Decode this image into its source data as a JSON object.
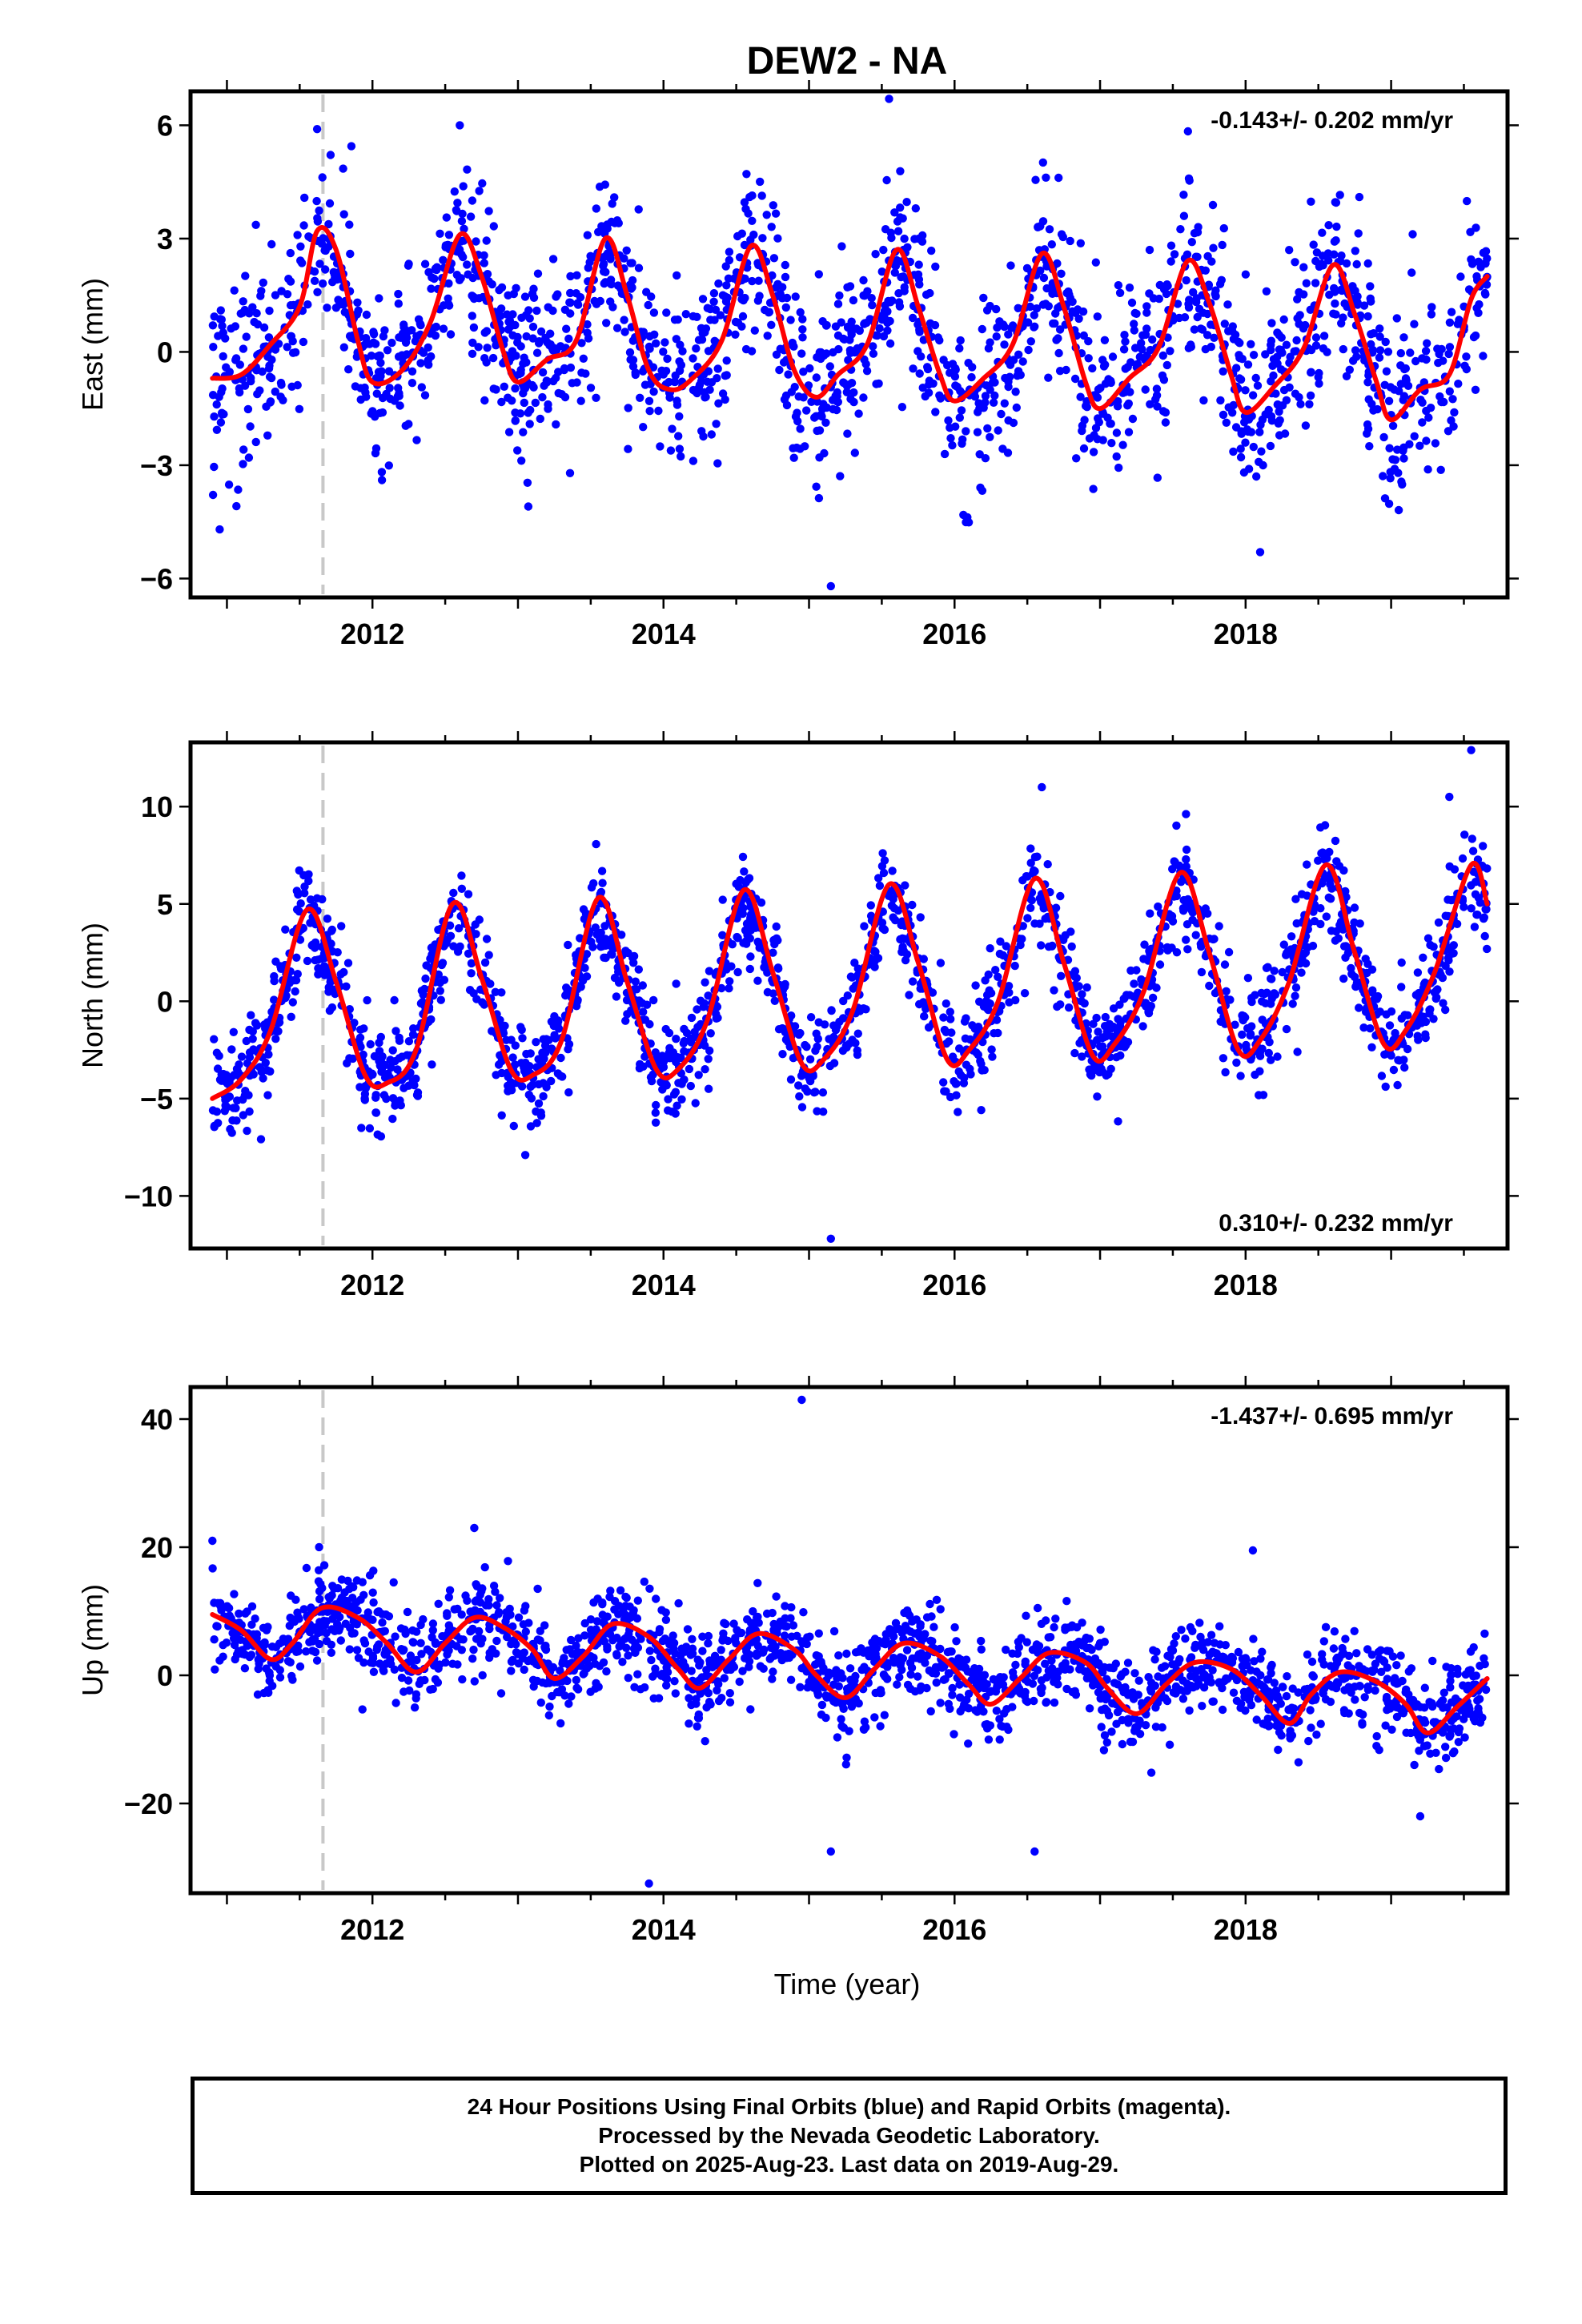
{
  "title": "DEW2 - NA",
  "xlabel": "Time (year)",
  "footer": {
    "line1": "24 Hour Positions Using Final Orbits (blue) and Rapid Orbits (magenta).",
    "line2": "Processed by the Nevada Geodetic Laboratory.",
    "line3": "Plotted on 2025-Aug-23. Last data on 2019-Aug-29."
  },
  "colors": {
    "points": "#0000ff",
    "model": "#ff0000",
    "event_line": "#c8c8c8"
  },
  "chart_data": [
    {
      "type": "scatter",
      "component": "east",
      "ylabel": "East (mm)",
      "rate_label": "-0.143+/- 0.202 mm/yr",
      "rate_position": "top-right",
      "xlim": [
        2010.75,
        2019.8
      ],
      "ylim": [
        -6.5,
        6.9
      ],
      "xticks": [
        2012,
        2014,
        2016,
        2018
      ],
      "xtick_labels": [
        "2012",
        "2014",
        "2016",
        "2018"
      ],
      "yticks": [
        -6,
        -3,
        0,
        3,
        6
      ],
      "ytick_labels": [
        "−6",
        "−3",
        "0",
        "3",
        "6"
      ],
      "event_line_x": 2011.66,
      "model": {
        "x": [
          2010.9,
          2011.1,
          2011.3,
          2011.5,
          2011.62,
          2011.75,
          2011.9,
          2012.0,
          2012.2,
          2012.4,
          2012.6,
          2012.75,
          2012.9,
          2013.0,
          2013.2,
          2013.4,
          2013.6,
          2013.75,
          2013.9,
          2014.05,
          2014.2,
          2014.4,
          2014.6,
          2014.75,
          2014.9,
          2015.05,
          2015.2,
          2015.4,
          2015.6,
          2015.75,
          2015.9,
          2016.0,
          2016.2,
          2016.4,
          2016.6,
          2016.75,
          2016.9,
          2017.0,
          2017.2,
          2017.4,
          2017.6,
          2017.75,
          2017.9,
          2018.0,
          2018.2,
          2018.4,
          2018.6,
          2018.75,
          2018.9,
          2019.0,
          2019.2,
          2019.4,
          2019.55,
          2019.66
        ],
        "y": [
          -0.7,
          -0.6,
          0.2,
          1.2,
          3.2,
          2.7,
          0.3,
          -0.8,
          -0.5,
          0.8,
          3.1,
          2.0,
          0.0,
          -0.8,
          -0.2,
          0.3,
          3.0,
          1.5,
          -0.5,
          -1.0,
          -0.7,
          0.3,
          2.8,
          1.5,
          -0.5,
          -1.2,
          -0.6,
          0.2,
          2.7,
          1.2,
          -0.6,
          -1.3,
          -0.7,
          0.2,
          2.6,
          1.2,
          -0.8,
          -1.5,
          -0.7,
          0.1,
          2.4,
          1.3,
          -0.6,
          -1.6,
          -0.9,
          0.1,
          2.3,
          1.0,
          -0.8,
          -1.8,
          -1.0,
          -0.6,
          1.4,
          2.0
        ]
      },
      "n_points": 1900,
      "points_center_offset": 0.0,
      "points_scatter_sd": 1.15,
      "outliers": [
        {
          "x": 2011.62,
          "y": 5.9
        },
        {
          "x": 2012.6,
          "y": 6.0
        },
        {
          "x": 2015.55,
          "y": 6.7
        },
        {
          "x": 2015.15,
          "y": -6.2
        },
        {
          "x": 2010.95,
          "y": -4.7
        },
        {
          "x": 2018.1,
          "y": -5.3
        }
      ]
    },
    {
      "type": "scatter",
      "component": "north",
      "ylabel": "North (mm)",
      "rate_label": "0.310+/- 0.232 mm/yr",
      "rate_position": "bottom-right",
      "xlim": [
        2010.75,
        2019.8
      ],
      "ylim": [
        -12.7,
        13.3
      ],
      "xticks": [
        2012,
        2014,
        2016,
        2018
      ],
      "xtick_labels": [
        "2012",
        "2014",
        "2016",
        "2018"
      ],
      "yticks": [
        -10,
        -5,
        0,
        5,
        10
      ],
      "ytick_labels": [
        "−10",
        "−5",
        "0",
        "5",
        "10"
      ],
      "event_line_x": 2011.66,
      "model": {
        "x": [
          2010.9,
          2011.1,
          2011.3,
          2011.55,
          2011.75,
          2011.95,
          2012.1,
          2012.3,
          2012.55,
          2012.75,
          2012.95,
          2013.1,
          2013.3,
          2013.55,
          2013.75,
          2013.95,
          2014.1,
          2014.3,
          2014.55,
          2014.75,
          2014.95,
          2015.1,
          2015.3,
          2015.55,
          2015.75,
          2015.95,
          2016.1,
          2016.3,
          2016.55,
          2016.75,
          2016.95,
          2017.1,
          2017.3,
          2017.55,
          2017.75,
          2017.95,
          2018.1,
          2018.3,
          2018.55,
          2018.75,
          2018.95,
          2019.1,
          2019.3,
          2019.55,
          2019.66
        ],
        "y": [
          -5.0,
          -4.0,
          -1.5,
          4.7,
          1.0,
          -3.8,
          -4.2,
          -2.5,
          5.0,
          1.2,
          -3.5,
          -3.8,
          -2.0,
          5.3,
          1.0,
          -3.5,
          -3.5,
          -1.0,
          5.7,
          1.5,
          -3.2,
          -3.0,
          -0.5,
          6.0,
          2.0,
          -3.0,
          -2.5,
          0.0,
          6.3,
          2.0,
          -2.8,
          -2.2,
          0.5,
          6.6,
          2.5,
          -2.5,
          -2.0,
          1.0,
          7.0,
          2.5,
          -2.2,
          -1.5,
          1.5,
          7.0,
          5.0
        ]
      },
      "n_points": 1900,
      "points_center_offset": 0.0,
      "points_scatter_sd": 1.3,
      "outliers": [
        {
          "x": 2015.15,
          "y": -12.2
        },
        {
          "x": 2019.55,
          "y": 12.9
        },
        {
          "x": 2016.6,
          "y": 11.0
        },
        {
          "x": 2019.4,
          "y": 10.5
        },
        {
          "x": 2013.05,
          "y": -7.9
        }
      ]
    },
    {
      "type": "scatter",
      "component": "up",
      "ylabel": "Up (mm)",
      "rate_label": "-1.437+/- 0.695 mm/yr",
      "rate_position": "top-right",
      "xlim": [
        2010.75,
        2019.8
      ],
      "ylim": [
        -34,
        45
      ],
      "xticks": [
        2012,
        2014,
        2016,
        2018
      ],
      "xtick_labels": [
        "2012",
        "2014",
        "2016",
        "2018"
      ],
      "yticks": [
        -20,
        0,
        20,
        40
      ],
      "ytick_labels": [
        "−20",
        "0",
        "20",
        "40"
      ],
      "event_line_x": 2011.66,
      "model": {
        "x": [
          2010.9,
          2011.1,
          2011.3,
          2011.45,
          2011.65,
          2011.9,
          2012.1,
          2012.3,
          2012.5,
          2012.7,
          2012.9,
          2013.1,
          2013.25,
          2013.45,
          2013.65,
          2013.9,
          2014.1,
          2014.25,
          2014.45,
          2014.65,
          2014.9,
          2015.05,
          2015.25,
          2015.45,
          2015.65,
          2015.9,
          2016.1,
          2016.25,
          2016.45,
          2016.65,
          2016.9,
          2017.05,
          2017.25,
          2017.45,
          2017.65,
          2017.9,
          2018.1,
          2018.3,
          2018.45,
          2018.65,
          2018.9,
          2019.1,
          2019.25,
          2019.45,
          2019.66
        ],
        "y": [
          9.5,
          7.0,
          2.5,
          5.0,
          10.5,
          9.0,
          5.0,
          0.5,
          5.0,
          9.0,
          7.5,
          4.0,
          -0.5,
          3.0,
          8.0,
          6.0,
          1.0,
          -2.0,
          2.5,
          6.5,
          4.0,
          0.0,
          -3.5,
          1.0,
          5.0,
          3.0,
          -1.5,
          -4.5,
          -0.5,
          3.5,
          2.0,
          -2.0,
          -6.0,
          -1.5,
          2.0,
          1.0,
          -3.0,
          -7.5,
          -3.0,
          0.5,
          -1.0,
          -4.5,
          -9.0,
          -5.0,
          -0.5
        ]
      },
      "n_points": 1900,
      "points_center_offset": 0.0,
      "points_scatter_sd": 3.6,
      "outliers": [
        {
          "x": 2014.95,
          "y": 43.0
        },
        {
          "x": 2013.9,
          "y": -32.5
        },
        {
          "x": 2015.15,
          "y": -27.5
        },
        {
          "x": 2016.55,
          "y": -27.5
        },
        {
          "x": 2010.9,
          "y": 21.0
        },
        {
          "x": 2012.7,
          "y": 23.0
        },
        {
          "x": 2018.05,
          "y": 19.5
        },
        {
          "x": 2019.2,
          "y": -22.0
        }
      ]
    }
  ]
}
